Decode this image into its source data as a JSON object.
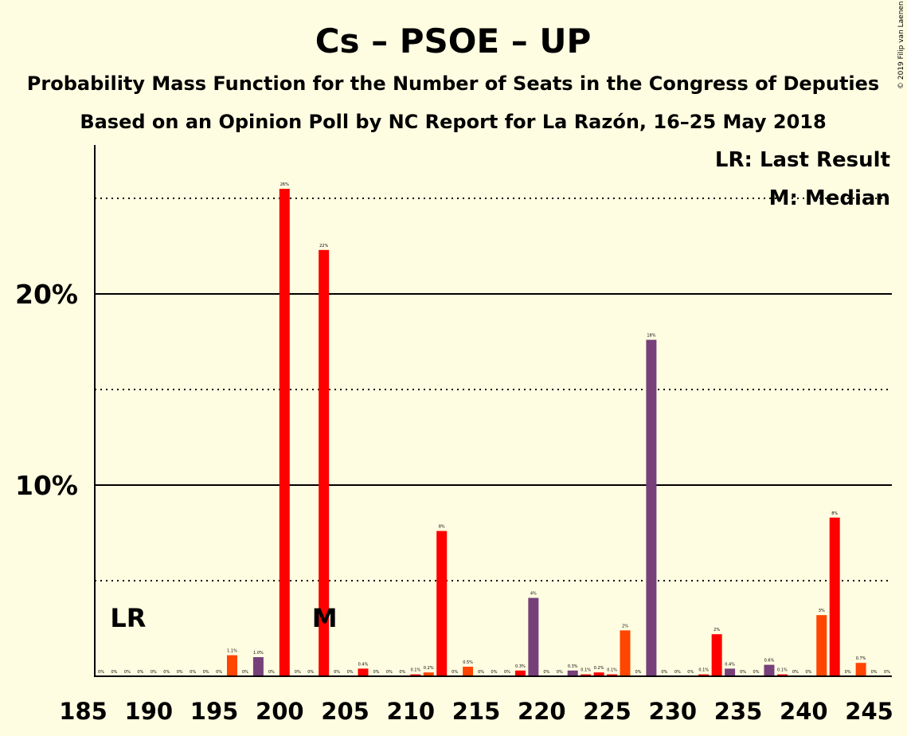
{
  "chart_data": {
    "type": "bar",
    "title": "Cs – PSOE – UP",
    "subtitle": "Probability Mass Function for the Number of Seats in the Congress of Deputies",
    "subtitle2": "Based on an Opinion Poll by NC Report for La Razón, 16–25 May 2018",
    "credit": "© 2019 Filip van Laenen",
    "legend": {
      "last_result": "LR: Last Result",
      "median": "M: Median",
      "placement": "top-right"
    },
    "xlim": [
      185,
      245
    ],
    "ylim": [
      0,
      0.275
    ],
    "x_ticks": [
      185,
      190,
      195,
      200,
      205,
      210,
      215,
      220,
      225,
      230,
      235,
      240,
      245
    ],
    "y_ticks_major": [
      0.1,
      0.2
    ],
    "y_tick_labels": [
      "10%",
      "20%"
    ],
    "y_ticks_minor": [
      0.05,
      0.15,
      0.25
    ],
    "last_result": {
      "seat": 188,
      "label": "LR"
    },
    "median": {
      "seat": 203,
      "label": "M"
    },
    "colors": {
      "red": "#ff0000",
      "orange": "#ff4500",
      "purple": "#77407a",
      "background": "#fffde1"
    },
    "bars": [
      {
        "seat": 186,
        "value": 0.0,
        "label": "0%",
        "color": "red"
      },
      {
        "seat": 187,
        "value": 0.0,
        "label": "0%",
        "color": "red"
      },
      {
        "seat": 188,
        "value": 0.0,
        "label": "0%",
        "color": "red"
      },
      {
        "seat": 189,
        "value": 0.0,
        "label": "0%",
        "color": "red"
      },
      {
        "seat": 190,
        "value": 0.0,
        "label": "0%",
        "color": "red"
      },
      {
        "seat": 191,
        "value": 0.0,
        "label": "0%",
        "color": "red"
      },
      {
        "seat": 192,
        "value": 0.0,
        "label": "0%",
        "color": "red"
      },
      {
        "seat": 193,
        "value": 0.0,
        "label": "0%",
        "color": "red"
      },
      {
        "seat": 194,
        "value": 0.0,
        "label": "0%",
        "color": "red"
      },
      {
        "seat": 195,
        "value": 0.0,
        "label": "0%",
        "color": "red"
      },
      {
        "seat": 196,
        "value": 0.011,
        "label": "1.1%",
        "color": "orange"
      },
      {
        "seat": 197,
        "value": 0.0,
        "label": "0%",
        "color": "red"
      },
      {
        "seat": 198,
        "value": 0.01,
        "label": "1.0%",
        "color": "purple"
      },
      {
        "seat": 199,
        "value": 0.0,
        "label": "0%",
        "color": "red"
      },
      {
        "seat": 200,
        "value": 0.255,
        "label": "26%",
        "color": "red"
      },
      {
        "seat": 201,
        "value": 0.0,
        "label": "0%",
        "color": "red"
      },
      {
        "seat": 202,
        "value": 0.0,
        "label": "0%",
        "color": "red"
      },
      {
        "seat": 203,
        "value": 0.223,
        "label": "22%",
        "color": "red"
      },
      {
        "seat": 204,
        "value": 0.0,
        "label": "0%",
        "color": "red"
      },
      {
        "seat": 205,
        "value": 0.0,
        "label": "0%",
        "color": "red"
      },
      {
        "seat": 206,
        "value": 0.004,
        "label": "0.4%",
        "color": "red"
      },
      {
        "seat": 207,
        "value": 0.0,
        "label": "0%",
        "color": "red"
      },
      {
        "seat": 208,
        "value": 0.0,
        "label": "0%",
        "color": "red"
      },
      {
        "seat": 209,
        "value": 0.0,
        "label": "0%",
        "color": "red"
      },
      {
        "seat": 210,
        "value": 0.001,
        "label": "0.1%",
        "color": "red"
      },
      {
        "seat": 211,
        "value": 0.002,
        "label": "0.2%",
        "color": "orange"
      },
      {
        "seat": 212,
        "value": 0.076,
        "label": "8%",
        "color": "red"
      },
      {
        "seat": 213,
        "value": 0.0,
        "label": "0%",
        "color": "red"
      },
      {
        "seat": 214,
        "value": 0.005,
        "label": "0.5%",
        "color": "orange"
      },
      {
        "seat": 215,
        "value": 0.0,
        "label": "0%",
        "color": "red"
      },
      {
        "seat": 216,
        "value": 0.0,
        "label": "0%",
        "color": "red"
      },
      {
        "seat": 217,
        "value": 0.0,
        "label": "0%",
        "color": "red"
      },
      {
        "seat": 218,
        "value": 0.003,
        "label": "0.3%",
        "color": "red"
      },
      {
        "seat": 219,
        "value": 0.041,
        "label": "4%",
        "color": "purple"
      },
      {
        "seat": 220,
        "value": 0.0,
        "label": "0%",
        "color": "red"
      },
      {
        "seat": 221,
        "value": 0.0,
        "label": "0%",
        "color": "red"
      },
      {
        "seat": 222,
        "value": 0.003,
        "label": "0.3%",
        "color": "purple"
      },
      {
        "seat": 223,
        "value": 0.001,
        "label": "0.1%",
        "color": "red"
      },
      {
        "seat": 224,
        "value": 0.002,
        "label": "0.2%",
        "color": "red"
      },
      {
        "seat": 225,
        "value": 0.001,
        "label": "0.1%",
        "color": "red"
      },
      {
        "seat": 226,
        "value": 0.024,
        "label": "2%",
        "color": "orange"
      },
      {
        "seat": 227,
        "value": 0.0,
        "label": "0%",
        "color": "red"
      },
      {
        "seat": 228,
        "value": 0.176,
        "label": "18%",
        "color": "purple"
      },
      {
        "seat": 229,
        "value": 0.0,
        "label": "0%",
        "color": "red"
      },
      {
        "seat": 230,
        "value": 0.0,
        "label": "0%",
        "color": "red"
      },
      {
        "seat": 231,
        "value": 0.0,
        "label": "0%",
        "color": "red"
      },
      {
        "seat": 232,
        "value": 0.001,
        "label": "0.1%",
        "color": "red"
      },
      {
        "seat": 233,
        "value": 0.022,
        "label": "2%",
        "color": "red"
      },
      {
        "seat": 234,
        "value": 0.004,
        "label": "0.4%",
        "color": "purple"
      },
      {
        "seat": 235,
        "value": 0.0,
        "label": "0%",
        "color": "red"
      },
      {
        "seat": 236,
        "value": 0.0,
        "label": "0%",
        "color": "red"
      },
      {
        "seat": 237,
        "value": 0.006,
        "label": "0.6%",
        "color": "purple"
      },
      {
        "seat": 238,
        "value": 0.001,
        "label": "0.1%",
        "color": "red"
      },
      {
        "seat": 239,
        "value": 0.0,
        "label": "0%",
        "color": "red"
      },
      {
        "seat": 240,
        "value": 0.0,
        "label": "0%",
        "color": "red"
      },
      {
        "seat": 241,
        "value": 0.032,
        "label": "3%",
        "color": "orange"
      },
      {
        "seat": 242,
        "value": 0.083,
        "label": "8%",
        "color": "red"
      },
      {
        "seat": 243,
        "value": 0.0,
        "label": "0%",
        "color": "red"
      },
      {
        "seat": 244,
        "value": 0.007,
        "label": "0.7%",
        "color": "orange"
      },
      {
        "seat": 245,
        "value": 0.0,
        "label": "0%",
        "color": "red"
      },
      {
        "seat": 246,
        "value": 0.0,
        "label": "0%",
        "color": "red"
      }
    ]
  }
}
